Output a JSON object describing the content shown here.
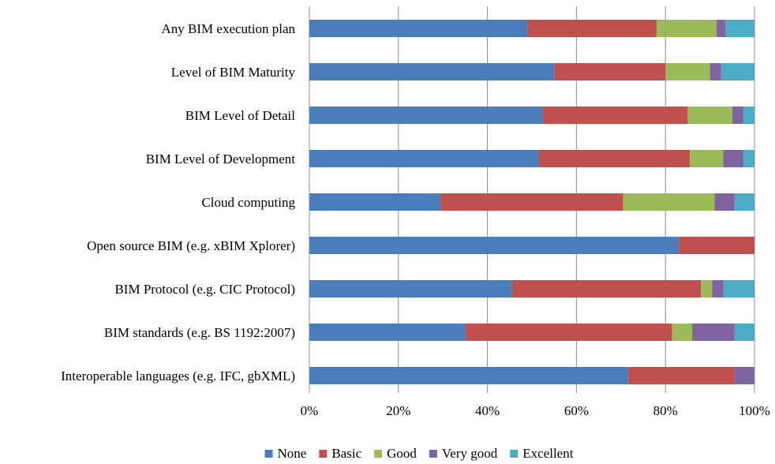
{
  "chart_data": {
    "type": "bar",
    "orientation": "horizontal",
    "stacked": "percent",
    "categories": [
      "Any BIM execution plan",
      "Level of BIM Maturity",
      "BIM Level of Detail",
      "BIM Level of Development",
      "Cloud computing",
      "Open source BIM (e.g. xBIM Xplorer)",
      "BIM Protocol (e.g. CIC Protocol)",
      "BIM standards (e.g. BS 1192:2007)",
      "Interoperable languages (e.g. IFC, gbXML)"
    ],
    "series": [
      {
        "name": "None",
        "color": "#4a7ebb",
        "values": [
          49,
          55,
          52.5,
          51.5,
          29.5,
          83,
          45.5,
          35,
          71.5
        ]
      },
      {
        "name": "Basic",
        "color": "#c0504d",
        "values": [
          29,
          25,
          32.5,
          34,
          41,
          17,
          42.5,
          46.5,
          24
        ]
      },
      {
        "name": "Good",
        "color": "#9bbb59",
        "values": [
          13.5,
          10,
          10,
          7.5,
          20.5,
          0,
          2.5,
          4.5,
          0
        ]
      },
      {
        "name": "Very good",
        "color": "#8064a2",
        "values": [
          2,
          2.5,
          2.5,
          4.5,
          4.5,
          0,
          2.5,
          9.5,
          4.5
        ]
      },
      {
        "name": "Excellent",
        "color": "#4bacc6",
        "values": [
          6.5,
          7.5,
          2.5,
          2.5,
          4.5,
          0,
          7,
          4.5,
          0
        ]
      }
    ],
    "xlim": [
      0,
      100
    ],
    "x_ticks": [
      "0%",
      "20%",
      "40%",
      "60%",
      "80%",
      "100%"
    ],
    "grid": "vertical",
    "legend_position": "bottom"
  }
}
